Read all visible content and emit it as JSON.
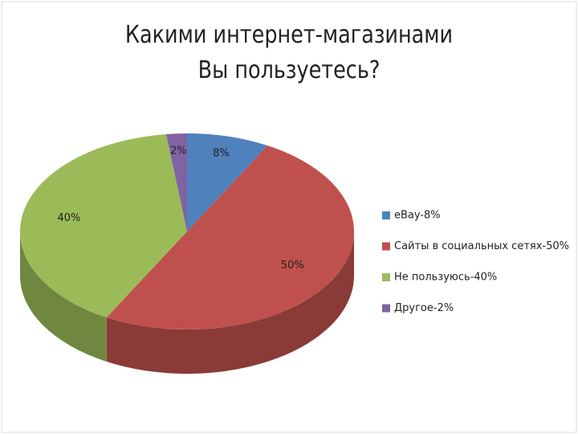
{
  "chart_data": {
    "type": "pie3d",
    "title": "Какими интернет-магазинами Вы пользуетесь?",
    "categories": [
      "eBay-8%",
      "Сайты в социальных сетях-50%",
      "Не пользуюсь-40%",
      "Другое-2%"
    ],
    "values": [
      8,
      50,
      40,
      2
    ],
    "value_labels": [
      "8%",
      "50%",
      "40%",
      "2%"
    ],
    "colors": [
      "#4f81bd",
      "#c0504d",
      "#9bbb59",
      "#8064a2"
    ],
    "legend": "right"
  }
}
